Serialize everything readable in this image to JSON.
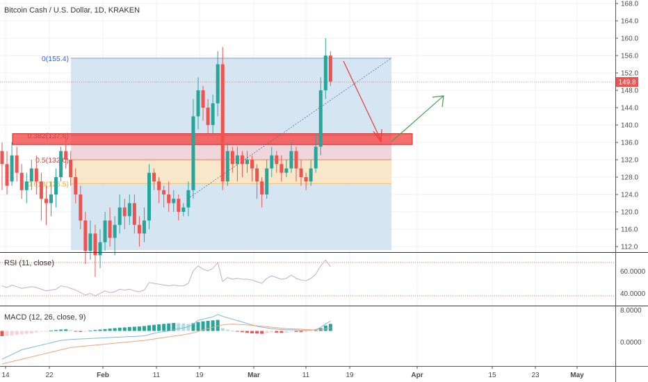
{
  "header": {
    "title": "Bitcoin Cash / U.S. Dollar, 1D, KRAKEN"
  },
  "price_axis": {
    "ticks": [
      "168.0",
      "164.0",
      "160.0",
      "156.0",
      "152.0",
      "148.0",
      "144.0",
      "140.0",
      "136.0",
      "132.0",
      "128.0",
      "124.0",
      "120.0",
      "116.0",
      "112.0"
    ],
    "last_price_label": "149.8",
    "last_price": 149.8
  },
  "rsi": {
    "label": "RSI (11, close)",
    "ticks": [
      "60.0000",
      "40.0000"
    ],
    "upper": 70,
    "lower": 30
  },
  "macd": {
    "label": "MACD (12, 26, close, 9)",
    "ticks": [
      "8.0000",
      "0.0000"
    ]
  },
  "time_axis": {
    "labels": [
      "14",
      "22",
      "Feb",
      "11",
      "19",
      "Mar",
      "11",
      "19",
      "Apr",
      "15",
      "23",
      "May"
    ]
  },
  "fib": {
    "levels": [
      {
        "label": "0(155.4)",
        "value": 155.4,
        "color": "#2962ff"
      },
      {
        "label": "0.382(137.6)",
        "value": 137.6,
        "color": "#333333"
      },
      {
        "label": "0.5(132.0)",
        "value": 132.0,
        "color": "#e53935"
      },
      {
        "label": "0.618(126.5)",
        "value": 126.5,
        "color": "#f5a623"
      }
    ]
  },
  "colors": {
    "up": "#26a69a",
    "down": "#ef5350",
    "fib_box": "#cfe0f0",
    "zone": "#f44b4b",
    "rsi_line": "#c7a8d8",
    "macd_line": "#7fb5e0",
    "signal_line": "#f2a27a"
  },
  "chart_data": {
    "type": "candlestick",
    "title": "Bitcoin Cash / U.S. Dollar, 1D, KRAKEN",
    "ylim": [
      110,
      170
    ],
    "candles": [
      [
        134,
        131,
        136,
        125
      ],
      [
        131,
        126,
        134,
        124
      ],
      [
        127,
        133,
        136,
        126
      ],
      [
        133,
        129,
        135,
        127
      ],
      [
        129,
        125,
        131,
        123
      ],
      [
        125,
        127,
        129,
        122
      ],
      [
        127,
        130,
        132,
        125
      ],
      [
        130,
        127,
        133,
        124
      ],
      [
        127,
        123,
        129,
        118
      ],
      [
        123,
        122,
        126,
        117
      ],
      [
        122,
        124,
        127,
        119
      ],
      [
        124,
        128,
        130,
        121
      ],
      [
        128,
        134,
        135,
        127
      ],
      [
        134,
        132,
        137,
        130
      ],
      [
        132,
        128,
        134,
        126
      ],
      [
        128,
        124,
        130,
        122
      ],
      [
        124,
        118,
        126,
        116
      ],
      [
        118,
        111,
        120,
        108
      ],
      [
        111,
        115,
        118,
        109
      ],
      [
        115,
        110,
        117,
        105
      ],
      [
        110,
        113,
        116,
        107
      ],
      [
        113,
        118,
        120,
        111
      ],
      [
        118,
        114,
        121,
        112
      ],
      [
        114,
        117,
        119,
        110
      ],
      [
        117,
        121,
        124,
        115
      ],
      [
        121,
        119,
        123,
        116
      ],
      [
        119,
        122,
        124,
        117
      ],
      [
        122,
        117,
        124,
        115
      ],
      [
        117,
        115,
        119,
        112
      ],
      [
        115,
        118,
        121,
        113
      ],
      [
        118,
        129,
        131,
        116
      ],
      [
        129,
        127,
        130,
        125
      ],
      [
        127,
        125,
        128,
        122
      ],
      [
        125,
        124,
        126,
        121
      ],
      [
        124,
        122,
        127,
        120
      ],
      [
        122,
        123,
        125,
        120
      ],
      [
        123,
        120,
        124,
        118
      ],
      [
        120,
        121,
        122,
        119
      ],
      [
        121,
        125,
        127,
        119
      ],
      [
        125,
        142,
        146,
        123
      ],
      [
        142,
        148,
        151,
        139
      ],
      [
        148,
        144,
        149,
        141
      ],
      [
        144,
        140,
        146,
        138
      ],
      [
        140,
        145,
        147,
        138
      ],
      [
        145,
        154,
        157,
        142
      ],
      [
        154,
        127,
        158,
        125
      ],
      [
        127,
        134,
        136,
        126
      ],
      [
        134,
        131,
        135,
        129
      ],
      [
        131,
        133,
        135,
        127
      ],
      [
        133,
        131,
        134,
        128
      ],
      [
        131,
        132,
        134,
        129
      ],
      [
        132,
        130,
        133,
        127
      ],
      [
        130,
        127,
        131,
        123
      ],
      [
        127,
        124,
        128,
        121
      ],
      [
        124,
        130,
        132,
        123
      ],
      [
        130,
        133,
        135,
        128
      ],
      [
        133,
        131,
        134,
        129
      ],
      [
        131,
        129,
        133,
        127
      ],
      [
        129,
        130,
        132,
        128
      ],
      [
        130,
        134,
        136,
        129
      ],
      [
        134,
        130,
        135,
        127
      ],
      [
        130,
        128,
        132,
        126
      ],
      [
        128,
        127,
        129,
        125
      ],
      [
        127,
        130,
        132,
        126
      ],
      [
        130,
        135,
        138,
        129
      ],
      [
        135,
        148,
        151,
        133
      ],
      [
        148,
        156,
        160,
        146
      ],
      [
        156,
        150,
        157,
        149
      ]
    ],
    "rsi_values": [
      42,
      40,
      43,
      41,
      39,
      40,
      41,
      40,
      38,
      36,
      37,
      38,
      42,
      41,
      39,
      37,
      34,
      31,
      33,
      30,
      33,
      36,
      34,
      35,
      38,
      37,
      38,
      36,
      35,
      37,
      46,
      45,
      44,
      43,
      42,
      43,
      42,
      42,
      45,
      60,
      66,
      62,
      60,
      63,
      70,
      47,
      52,
      50,
      51,
      50,
      50,
      49,
      47,
      45,
      51,
      54,
      52,
      50,
      51,
      55,
      51,
      49,
      48,
      51,
      56,
      66,
      73,
      65
    ],
    "macd_hist": [
      -2.2,
      -2.0,
      -1.8,
      -1.6,
      -1.4,
      -1.2,
      -1.0,
      -0.6,
      -0.3,
      -0.1,
      0.2,
      0.4,
      0.6,
      0.7,
      0.4,
      -0.2,
      -0.4,
      -0.3,
      0.2,
      0.4,
      0.6,
      0.8,
      1.0,
      1.2,
      1.4,
      1.5,
      1.7,
      1.8,
      1.9,
      2.1,
      2.4,
      2.6,
      2.8,
      3.0,
      3.2,
      3.4,
      3.3,
      3.2,
      3.0,
      3.3,
      3.8,
      4.1,
      4.3,
      4.5,
      4.7,
      1.2,
      0.6,
      0.2,
      -0.2,
      -0.5,
      -0.8,
      -1.0,
      -1.1,
      -1.2,
      -0.9,
      -0.6,
      -0.7,
      -0.8,
      -0.7,
      -0.3,
      -0.4,
      -0.5,
      -0.4,
      -0.2,
      0.3,
      1.2,
      2.3,
      3.0
    ],
    "macd_line": [
      -12,
      -11,
      -10,
      -9,
      -8,
      -7.5,
      -7,
      -6.5,
      -6,
      -5.5,
      -5,
      -4.5,
      -4,
      -3.8,
      -3.6,
      -3.5,
      -3.4,
      -3.3,
      -3.2,
      -3.1,
      -3.0,
      -2.9,
      -2.8,
      -2.7,
      -2.6,
      -2.5,
      -2.4,
      -2.3,
      -2.2,
      -2.1,
      -1.5,
      -1.0,
      -0.6,
      -0.3,
      0.0,
      0.5,
      1.0,
      1.3,
      1.8,
      3.0,
      4.5,
      5.0,
      5.5,
      6.0,
      7.0,
      6.2,
      5.6,
      5.0,
      4.4,
      3.8,
      3.2,
      2.6,
      2.0,
      1.6,
      1.3,
      1.0,
      0.8,
      0.6,
      0.5,
      0.5,
      0.4,
      0.3,
      0.2,
      0.3,
      0.6,
      1.5,
      3.0,
      4.2
    ],
    "signal_line": [
      -14,
      -13.5,
      -13,
      -12.5,
      -12,
      -11.5,
      -11,
      -10.5,
      -10,
      -9.5,
      -9,
      -8.5,
      -8,
      -7.5,
      -7,
      -6.8,
      -6.6,
      -6.4,
      -6.2,
      -6.0,
      -5.8,
      -5.6,
      -5.4,
      -5.2,
      -5.0,
      -4.8,
      -4.6,
      -4.4,
      -4.2,
      -4.0,
      -3.7,
      -3.4,
      -3.1,
      -2.8,
      -2.5,
      -2.2,
      -1.9,
      -1.6,
      -1.2,
      -0.8,
      -0.2,
      0.5,
      1.1,
      1.6,
      2.2,
      2.6,
      2.8,
      2.9,
      2.8,
      2.7,
      2.6,
      2.4,
      2.2,
      2.0,
      1.8,
      1.6,
      1.4,
      1.2,
      1.0,
      0.9,
      0.8,
      0.7,
      0.6,
      0.5,
      0.5,
      0.6,
      0.9,
      1.3
    ],
    "zone": [
      135.5,
      138.0
    ],
    "series": [
      {
        "values_ref": "candles"
      },
      {
        "values_ref": "rsi_values"
      },
      {
        "values_ref": "macd_hist"
      }
    ]
  }
}
